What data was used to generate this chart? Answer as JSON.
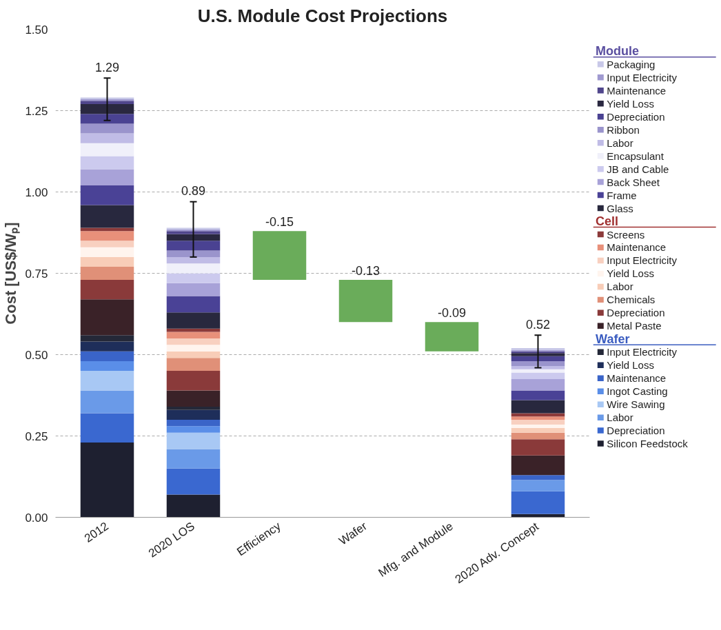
{
  "chart_data": {
    "type": "bar",
    "title": "U.S. Module Cost Projections",
    "ylabel": "Cost [US$/Wₚ]",
    "categories": [
      "2012",
      "2020 LOS",
      "Efficiency",
      "Wafer",
      "Mfg. and Module",
      "2020 Adv. Concept"
    ],
    "stacked": true,
    "ylim": [
      0,
      1.5
    ],
    "yticks": [
      {
        "value": 0,
        "label": "0.00"
      },
      {
        "value": 0.25,
        "label": "0.25"
      },
      {
        "value": 0.5,
        "label": "0.50"
      },
      {
        "value": 0.75,
        "label": "0.75"
      },
      {
        "value": 1.0,
        "label": "1.00"
      },
      {
        "value": 1.25,
        "label": "1.25"
      },
      {
        "value": 1.5,
        "label": "1.50"
      }
    ],
    "grid": "y",
    "legend": "right",
    "totals": [
      "1.29",
      "0.89",
      null,
      null,
      null,
      "0.52"
    ],
    "series": [
      {
        "name": "Silicon Feedstock",
        "color": "#1e2030",
        "values": [
          0.23,
          0.07,
          null,
          null,
          null,
          0.01
        ]
      },
      {
        "name": "Depreciation",
        "color": "#3a68d0",
        "values": [
          0.09,
          0.08,
          null,
          null,
          null,
          0.07
        ]
      },
      {
        "name": "Labor",
        "color": "#6a9ae8",
        "values": [
          0.07,
          0.06,
          null,
          null,
          null,
          0.035
        ]
      },
      {
        "name": "Wire Sawing",
        "color": "#a8c8f4",
        "values": [
          0.06,
          0.05,
          null,
          null,
          null,
          null
        ]
      },
      {
        "name": "Ingot Casting",
        "color": "#5a8ee8",
        "values": [
          0.03,
          0.02,
          null,
          null,
          null,
          null
        ]
      },
      {
        "name": "Maintenance",
        "color": "#3a64c8",
        "values": [
          0.03,
          0.02,
          null,
          null,
          null,
          0.015
        ]
      },
      {
        "name": "Yield Loss",
        "color": "#1e2e5a",
        "values": [
          0.03,
          0.03,
          null,
          null,
          null,
          null
        ]
      },
      {
        "name": "Input Electricity",
        "color": "#242838",
        "values": [
          0.02,
          0.01,
          null,
          null,
          null,
          null
        ]
      },
      {
        "type": "other",
        "name": "Wafer",
        "color": "#3a5cc0",
        "values": [
          null,
          null,
          null,
          null,
          null,
          null
        ]
      },
      {
        "name": "Metal Paste",
        "color": "#3a2228",
        "values": [
          0.11,
          0.05,
          null,
          null,
          null,
          0.06
        ]
      },
      {
        "name": "Depreciation",
        "color": "#8a3a3a",
        "values": [
          0.06,
          0.06,
          null,
          null,
          null,
          0.05
        ]
      },
      {
        "name": "Chemicals",
        "color": "#e09078",
        "values": [
          0.04,
          0.04,
          null,
          null,
          null,
          0.02
        ]
      },
      {
        "name": "Labor",
        "color": "#f8cdb8",
        "values": [
          0.03,
          0.02,
          null,
          null,
          null,
          0.015
        ]
      },
      {
        "name": "Yield Loss",
        "color": "#fff4ee",
        "values": [
          0.03,
          0.02,
          null,
          null,
          null,
          0.01
        ]
      },
      {
        "name": "Input Electricity",
        "color": "#f8d0c0",
        "values": [
          0.02,
          0.02,
          null,
          null,
          null,
          0.015
        ]
      },
      {
        "name": "Maintenance",
        "color": "#e8907a",
        "values": [
          0.03,
          0.02,
          null,
          null,
          null,
          0.01
        ]
      },
      {
        "name": "Screens",
        "color": "#8c3a3a",
        "values": [
          0.01,
          0.01,
          null,
          null,
          null,
          0.01
        ]
      },
      {
        "type": "other",
        "name": "Cell",
        "color": "#a03030",
        "values": [
          null,
          null,
          null,
          null,
          null,
          null
        ]
      },
      {
        "name": "Glass",
        "color": "#28283e",
        "values": [
          0.07,
          0.05,
          null,
          null,
          null,
          0.04
        ]
      },
      {
        "name": "Frame",
        "color": "#4a4296",
        "values": [
          0.06,
          0.05,
          null,
          null,
          null,
          0.03
        ]
      },
      {
        "name": "Back Sheet",
        "color": "#a8a2d8",
        "values": [
          0.05,
          0.04,
          null,
          null,
          null,
          0.035
        ]
      },
      {
        "name": "JB and Cable",
        "color": "#cccaee",
        "values": [
          0.04,
          0.03,
          null,
          null,
          null,
          0.02
        ]
      },
      {
        "name": "Encapsulant",
        "color": "#f0f0fa",
        "values": [
          0.04,
          0.03,
          null,
          null,
          null,
          0.01
        ]
      },
      {
        "name": "Labor",
        "color": "#c0bce6",
        "values": [
          0.03,
          0.02,
          null,
          null,
          null,
          0.01
        ]
      },
      {
        "name": "Ribbon",
        "color": "#9a94cc",
        "values": [
          0.03,
          0.02,
          null,
          null,
          null,
          0.015
        ]
      },
      {
        "name": "Depreciation",
        "color": "#4a4292",
        "values": [
          0.03,
          0.03,
          null,
          null,
          null,
          0.015
        ]
      },
      {
        "name": "Yield Loss",
        "color": "#2a2840",
        "values": [
          0.03,
          0.02,
          null,
          null,
          null,
          0.01
        ]
      },
      {
        "name": "Maintenance",
        "color": "#50468c",
        "values": [
          0.01,
          0.01,
          null,
          null,
          null,
          0.005
        ]
      },
      {
        "name": "Input Electricity",
        "color": "#a09ad0",
        "values": [
          0.005,
          0.005,
          null,
          null,
          null,
          0.005
        ]
      },
      {
        "name": "Packaging",
        "color": "#c8c8e8",
        "values": [
          0.005,
          0.005,
          null,
          null,
          null,
          0.005
        ],
        "errors": [
          [
            1.22,
            1.35
          ],
          [
            0.8,
            0.97
          ],
          null,
          null,
          null,
          [
            0.46,
            0.56
          ]
        ]
      },
      {
        "type": "other",
        "name": "Module",
        "color": "#5a4fa0",
        "values": [
          null,
          null,
          null,
          null,
          null,
          null
        ]
      },
      {
        "color": "#6aac5a",
        "values": [
          null,
          null,
          -0.15,
          -0.13,
          -0.09,
          null
        ],
        "base": [
          null,
          null,
          0.88,
          0.73,
          0.6,
          null
        ],
        "value_labels": [
          null,
          null,
          "-0.15",
          "-0.13",
          "-0.09",
          null
        ]
      }
    ]
  }
}
